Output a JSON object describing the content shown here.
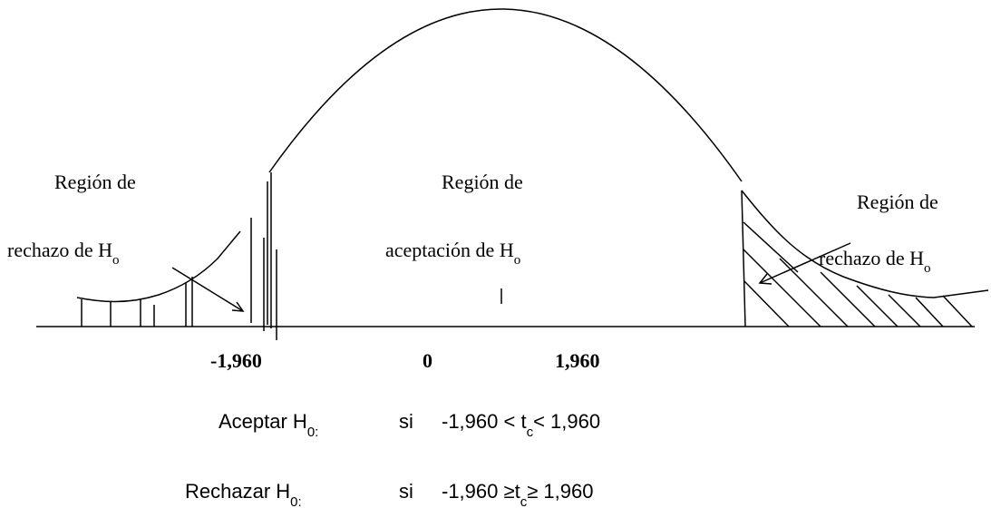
{
  "regions": [
    {
      "line1": "Región de",
      "line2": "rechazo de H",
      "sub": "o"
    },
    {
      "line1": "Región de",
      "line2": "aceptación de H",
      "sub": "o"
    },
    {
      "line1": "Región de",
      "line2": "rechazo de H",
      "sub": "o"
    }
  ],
  "axis_labels": [
    "-1,960",
    "0",
    "1,960"
  ],
  "rules": [
    {
      "label": "Aceptar H",
      "label_sub": "0:",
      "si": "si",
      "cond_pre": "-1,960 < t",
      "cond_sub": "c",
      "cond_post": "< 1,960"
    },
    {
      "label": "Rechazar H",
      "label_sub": "0:",
      "si": "si",
      "cond_pre": "-1,960 ≥t",
      "cond_sub": "c",
      "cond_post": "≥ 1,960"
    }
  ]
}
